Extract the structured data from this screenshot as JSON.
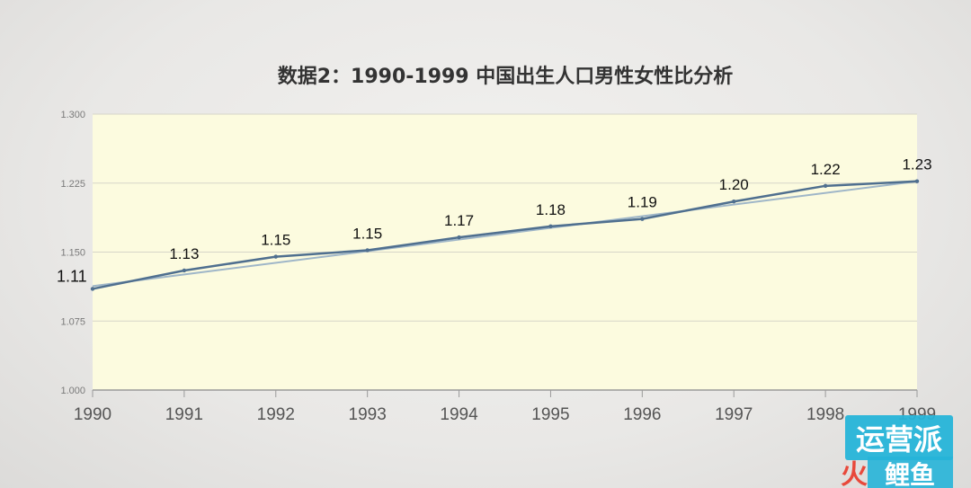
{
  "chart_data": {
    "type": "line",
    "title": "数据2：1990-1999 中国出生人口男性女性比分析",
    "xlabel": "",
    "ylabel": "",
    "categories": [
      "1990",
      "1991",
      "1992",
      "1993",
      "1994",
      "1995",
      "1996",
      "1997",
      "1998",
      "1999"
    ],
    "series": [
      {
        "values": [
          1.11,
          1.13,
          1.145,
          1.152,
          1.166,
          1.178,
          1.186,
          1.205,
          1.222,
          1.227
        ],
        "data_labels": [
          "1.11",
          "1.13",
          "1.15",
          "1.15",
          "1.17",
          "1.18",
          "1.19",
          "1.20",
          "1.22",
          "1.23"
        ],
        "color": "#4f6f8f"
      }
    ],
    "trendline": {
      "start": 1.113,
      "end": 1.227,
      "color": "#9fb6c8"
    },
    "ylim": [
      1.0,
      1.3
    ],
    "yticks": [
      "1.000",
      "1.075",
      "1.150",
      "1.225",
      "1.300"
    ],
    "grid": true,
    "plot_background": "#fcfbdf"
  },
  "watermark": {
    "line1": "运营派",
    "line2": "火",
    "line3": "鲤鱼",
    "color_bg": "#26b4d8",
    "color_accent": "#e8493b"
  }
}
